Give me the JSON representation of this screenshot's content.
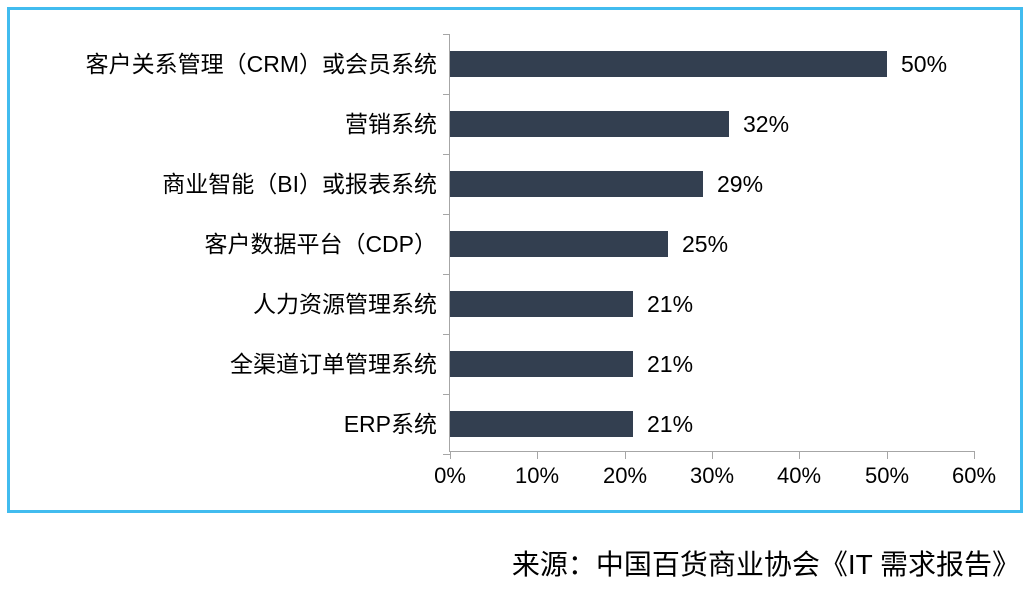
{
  "chart_data": {
    "type": "bar",
    "orientation": "horizontal",
    "title": "",
    "categories": [
      "客户关系管理（CRM）或会员系统",
      "营销系统",
      "商业智能（BI）或报表系统",
      "客户数据平台（CDP）",
      "人力资源管理系统",
      "全渠道订单管理系统",
      "ERP系统"
    ],
    "values": [
      50,
      32,
      29,
      25,
      21,
      21,
      21
    ],
    "value_labels": [
      "50%",
      "32%",
      "29%",
      "25%",
      "21%",
      "21%",
      "21%"
    ],
    "x_tick_labels": [
      "0%",
      "10%",
      "20%",
      "30%",
      "40%",
      "50%",
      "60%"
    ],
    "xlim": [
      0,
      60
    ],
    "xlabel": "",
    "ylabel": "",
    "grid": false,
    "legend": "none",
    "bar_color": "#333F50",
    "axis_color": "#A6A6A6",
    "frame_border_color": "#41BCEF",
    "label_color": "#000000"
  },
  "source": {
    "text": "来源：中国百货商业协会《IT 需求报告》"
  }
}
